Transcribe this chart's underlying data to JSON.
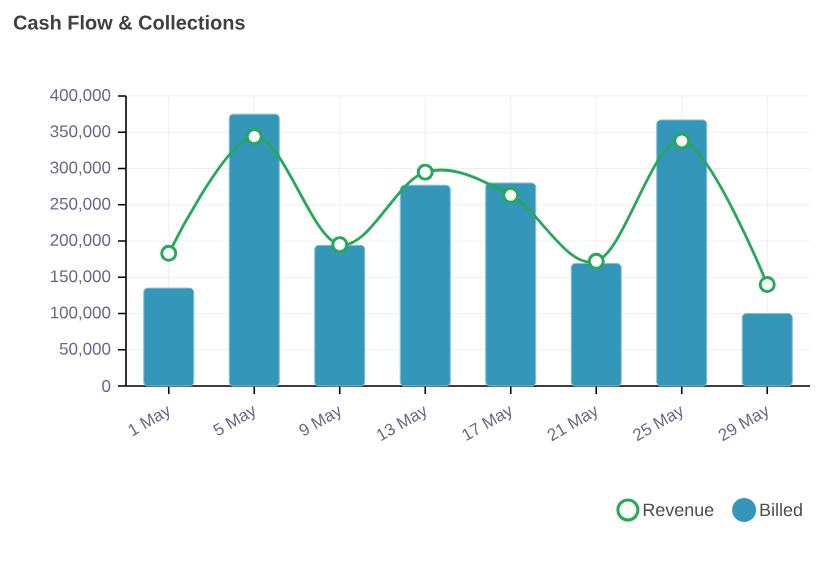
{
  "chart_data": {
    "type": "bar",
    "title": "Cash Flow & Collections",
    "categories": [
      "1 May",
      "5 May",
      "9 May",
      "13 May",
      "17 May",
      "21 May",
      "25 May",
      "29 May"
    ],
    "series": [
      {
        "name": "Revenue",
        "type": "line",
        "color": "#27a85a",
        "marker": "circle",
        "values": [
          183000,
          344000,
          195000,
          295000,
          263000,
          172000,
          338000,
          140000
        ]
      },
      {
        "name": "Billed",
        "type": "bar",
        "color": "#3496b9",
        "values": [
          135000,
          375000,
          194000,
          277000,
          280000,
          169000,
          367000,
          100000
        ]
      }
    ],
    "ylim": [
      0,
      400000
    ],
    "yticks": [
      {
        "value": 0,
        "label": "0"
      },
      {
        "value": 50000,
        "label": "50,000"
      },
      {
        "value": 100000,
        "label": "100,000"
      },
      {
        "value": 150000,
        "label": "150,000"
      },
      {
        "value": 200000,
        "label": "200,000"
      },
      {
        "value": 250000,
        "label": "250,000"
      },
      {
        "value": 300000,
        "label": "300,000"
      },
      {
        "value": 350000,
        "label": "350,000"
      },
      {
        "value": 400000,
        "label": "400,000"
      }
    ],
    "grid": true,
    "legend": "bottom right"
  }
}
